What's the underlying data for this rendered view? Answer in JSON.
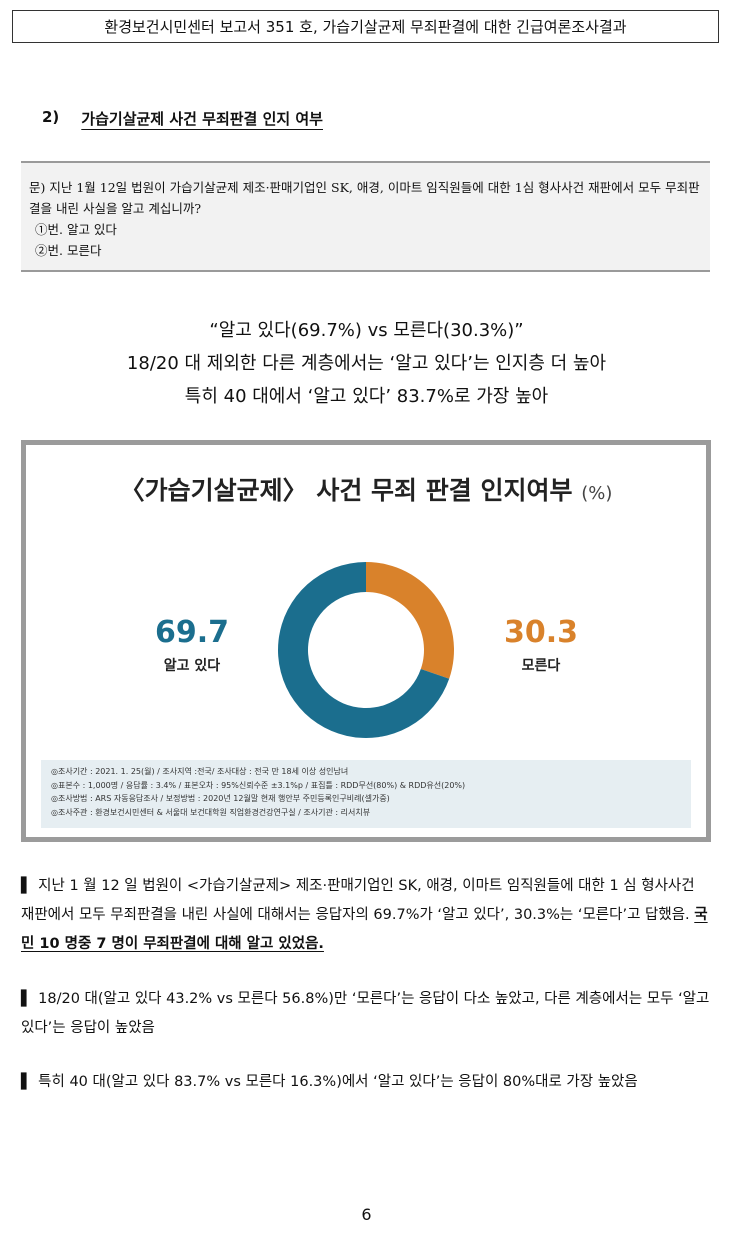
{
  "header": {
    "title": "환경보건시민센터 보고서 351 호, 가습기살균제 무죄판결에 대한 긴급여론조사결과"
  },
  "section": {
    "number": "2)",
    "title": "가습기살균제 사건 무죄판결 인지 여부"
  },
  "question": {
    "text": "문) 지난 1월 12일 법원이 가습기살균제 제조·판매기업인 SK, 애경, 이마트 임직원들에 대한 1심 형사사건 재판에서 모두 무죄판결을 내린 사실을 알고 계십니까?",
    "options": [
      "①번. 알고 있다",
      "②번. 모른다"
    ]
  },
  "headline": {
    "line1": "“알고 있다(69.7%) vs 모른다(30.3%)”",
    "line2": "18/20 대 제외한 다른 계층에서는 ‘알고 있다’는 인지층 더 높아",
    "line3": "특히 40 대에서 ‘알고 있다’ 83.7%로 가장 높아"
  },
  "chart_data": {
    "type": "pie",
    "title": "〈가습기살균제〉 사건 무죄 판결 인지여부",
    "unit": "(%)",
    "categories": [
      "알고 있다",
      "모른다"
    ],
    "values": [
      69.7,
      30.3
    ],
    "value_labels": [
      "69.7",
      "30.3"
    ],
    "colors": [
      "#1b6e8e",
      "#d9822b"
    ],
    "notes": [
      "◎조사기간 : 2021. 1. 25(월) / 조사지역 :전국/ 조사대상 : 전국 만 18세 이상 성인남녀",
      "◎표본수 : 1,000명 / 응답률 : 3.4% / 표본오차 : 95%신뢰수준 ±3.1%p / 표집틀 : RDD무선(80%) & RDD유선(20%)",
      "◎조사방법 : ARS 자동응답조사 / 보정방법 : 2020년 12월말 현재 행안부 주민등록인구비례(셀가중)",
      "◎조사주관 : 환경보건시민센터 & 서울대 보건대학원 직업환경건강연구실 / 조사기관 : 리서치뷰"
    ]
  },
  "paragraphs": {
    "p1_a": "지난 1 월 12 일 법원이 <가습기살균제> 제조·판매기업인 SK, 애경, 이마트 임직원들에 대한 1 심 형사사건 재판에서 모두 무죄판결을 내린 사실에 대해서는 응답자의 69.7%가 ‘알고 있다’, 30.3%는 ‘모른다’고 답했음.",
    "p1_b": "국민 10 명중 7 명이 무죄판결에 대해 알고 있었음.",
    "p2": "18/20 대(알고 있다 43.2% vs 모른다 56.8%)만 ‘모른다’는 응답이 다소 높았고, 다른 계층에서는 모두 ‘알고 있다’는 응답이 높았음",
    "p3": "특히 40 대(알고 있다 83.7% vs 모른다 16.3%)에서 ‘알고 있다’는 응답이 80%대로 가장 높았음",
    "bullet": "▌"
  },
  "page_number": "6"
}
